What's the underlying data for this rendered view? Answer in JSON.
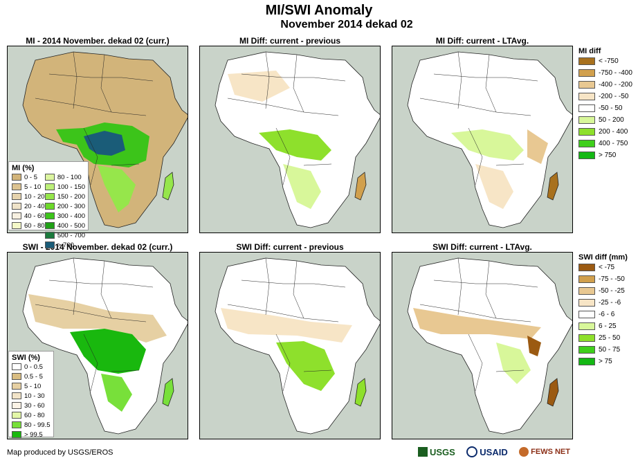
{
  "title": "MI/SWI Anomaly",
  "subtitle": "November 2014 dekad 02",
  "panels": {
    "mi_current": "MI - 2014 November. dekad 02 (curr.)",
    "mi_diff_prev": "MI Diff: current - previous",
    "mi_diff_lta": "MI Diff: current - LTAvg.",
    "swi_current": "SWI - 2014 November. dekad 02 (curr.)",
    "swi_diff_prev": "SWI Diff: current - previous",
    "swi_diff_lta": "SWI Diff: current - LTAvg."
  },
  "mi_legend": {
    "title": "MI (%)",
    "items": [
      {
        "label": "0 - 5",
        "color": "#d2b47a"
      },
      {
        "label": "5 - 10",
        "color": "#dcc391"
      },
      {
        "label": "10 - 20",
        "color": "#e6d3ad"
      },
      {
        "label": "20 - 40",
        "color": "#efe3c9"
      },
      {
        "label": "40 - 60",
        "color": "#f7f0e1"
      },
      {
        "label": "60 - 80",
        "color": "#f4f8c8"
      },
      {
        "label": "80 - 100",
        "color": "#dcf5a0"
      },
      {
        "label": "100 - 150",
        "color": "#bdf07a"
      },
      {
        "label": "150 - 200",
        "color": "#96e64b"
      },
      {
        "label": "200 - 300",
        "color": "#6dd92a"
      },
      {
        "label": "300 - 400",
        "color": "#3cc41a"
      },
      {
        "label": "400 - 500",
        "color": "#1fa015"
      },
      {
        "label": "500 - 700",
        "color": "#1b7a3c"
      },
      {
        "label": "> 700",
        "color": "#1a5c78"
      }
    ]
  },
  "swi_legend": {
    "title": "SWI (%)",
    "items": [
      {
        "label": "0 - 0.5",
        "color": "#ffffff"
      },
      {
        "label": "0.5 - 5",
        "color": "#d9bd82"
      },
      {
        "label": "5 - 10",
        "color": "#e6d0a3"
      },
      {
        "label": "10 - 30",
        "color": "#f2e4c8"
      },
      {
        "label": "30 - 60",
        "color": "#fbf3e6"
      },
      {
        "label": "60 - 80",
        "color": "#e3f7a8"
      },
      {
        "label": "80 - 99.5",
        "color": "#78e03a"
      },
      {
        "label": "> 99.5",
        "color": "#19b80e"
      }
    ]
  },
  "mi_diff_legend": {
    "title": "MI diff",
    "items": [
      {
        "label": "< -750",
        "color": "#a8711e"
      },
      {
        "label": "-750 - -400",
        "color": "#d1a04d"
      },
      {
        "label": "-400 - -200",
        "color": "#e8c892"
      },
      {
        "label": "-200 - -50",
        "color": "#f7e5c6"
      },
      {
        "label": "-50 - 50",
        "color": "#ffffff"
      },
      {
        "label": "50 - 200",
        "color": "#d8f79a"
      },
      {
        "label": "200 - 400",
        "color": "#8ee02c"
      },
      {
        "label": "400 - 750",
        "color": "#3fcf1c"
      },
      {
        "label": "> 750",
        "color": "#14b814"
      }
    ]
  },
  "swi_diff_legend": {
    "title": "SWI diff (mm)",
    "items": [
      {
        "label": "< -75",
        "color": "#9b5a12"
      },
      {
        "label": "-75 - -50",
        "color": "#d1a04d"
      },
      {
        "label": "-50 - -25",
        "color": "#e8c892"
      },
      {
        "label": "-25 - -6",
        "color": "#f7e5c6"
      },
      {
        "label": "-6 - 6",
        "color": "#ffffff"
      },
      {
        "label": "6 - 25",
        "color": "#d8f79a"
      },
      {
        "label": "25 - 50",
        "color": "#8ee02c"
      },
      {
        "label": "50 - 75",
        "color": "#3fcf1c"
      },
      {
        "label": "> 75",
        "color": "#14b814"
      }
    ]
  },
  "footer": {
    "credit": "Map produced by USGS/EROS",
    "logos": [
      "USGS",
      "USAID",
      "FEWS NET"
    ]
  },
  "colors": {
    "ocean": "#c9d3c9",
    "border": "#222222",
    "dry": "#d2b47a",
    "wet": "#1fa015",
    "vwet": "#1a5c78"
  }
}
